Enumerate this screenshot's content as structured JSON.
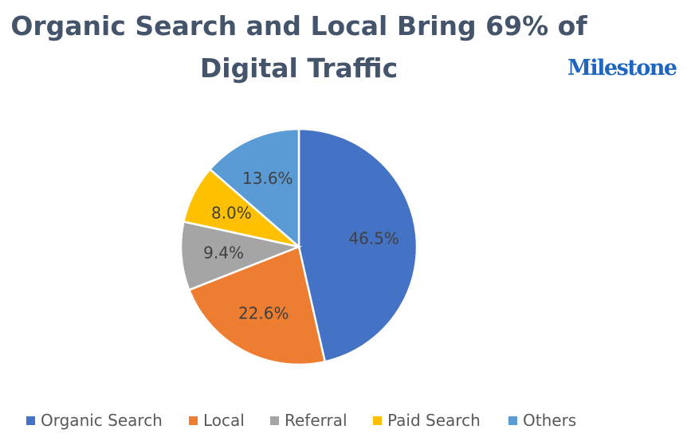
{
  "page": {
    "title_line1": "Organic Search and Local Bring 69% of",
    "title_line2": "Digital Traffic",
    "logo_text": "Milestone"
  },
  "chart_data": {
    "type": "pie",
    "title": "Organic Search and Local Bring 69% of Digital Traffic",
    "categories": [
      "Organic Search",
      "Local",
      "Referral",
      "Paid Search",
      "Others"
    ],
    "values": [
      46.5,
      22.6,
      9.4,
      8.0,
      13.6
    ],
    "labels": [
      "46.5%",
      "22.6%",
      "9.4%",
      "8.0%",
      "13.6%"
    ],
    "colors": [
      "#4472C4",
      "#ED7D31",
      "#A5A5A5",
      "#FFC000",
      "#5B9BD5"
    ],
    "start_angle": "12 o'clock",
    "direction": "clockwise",
    "legend_position": "bottom"
  }
}
